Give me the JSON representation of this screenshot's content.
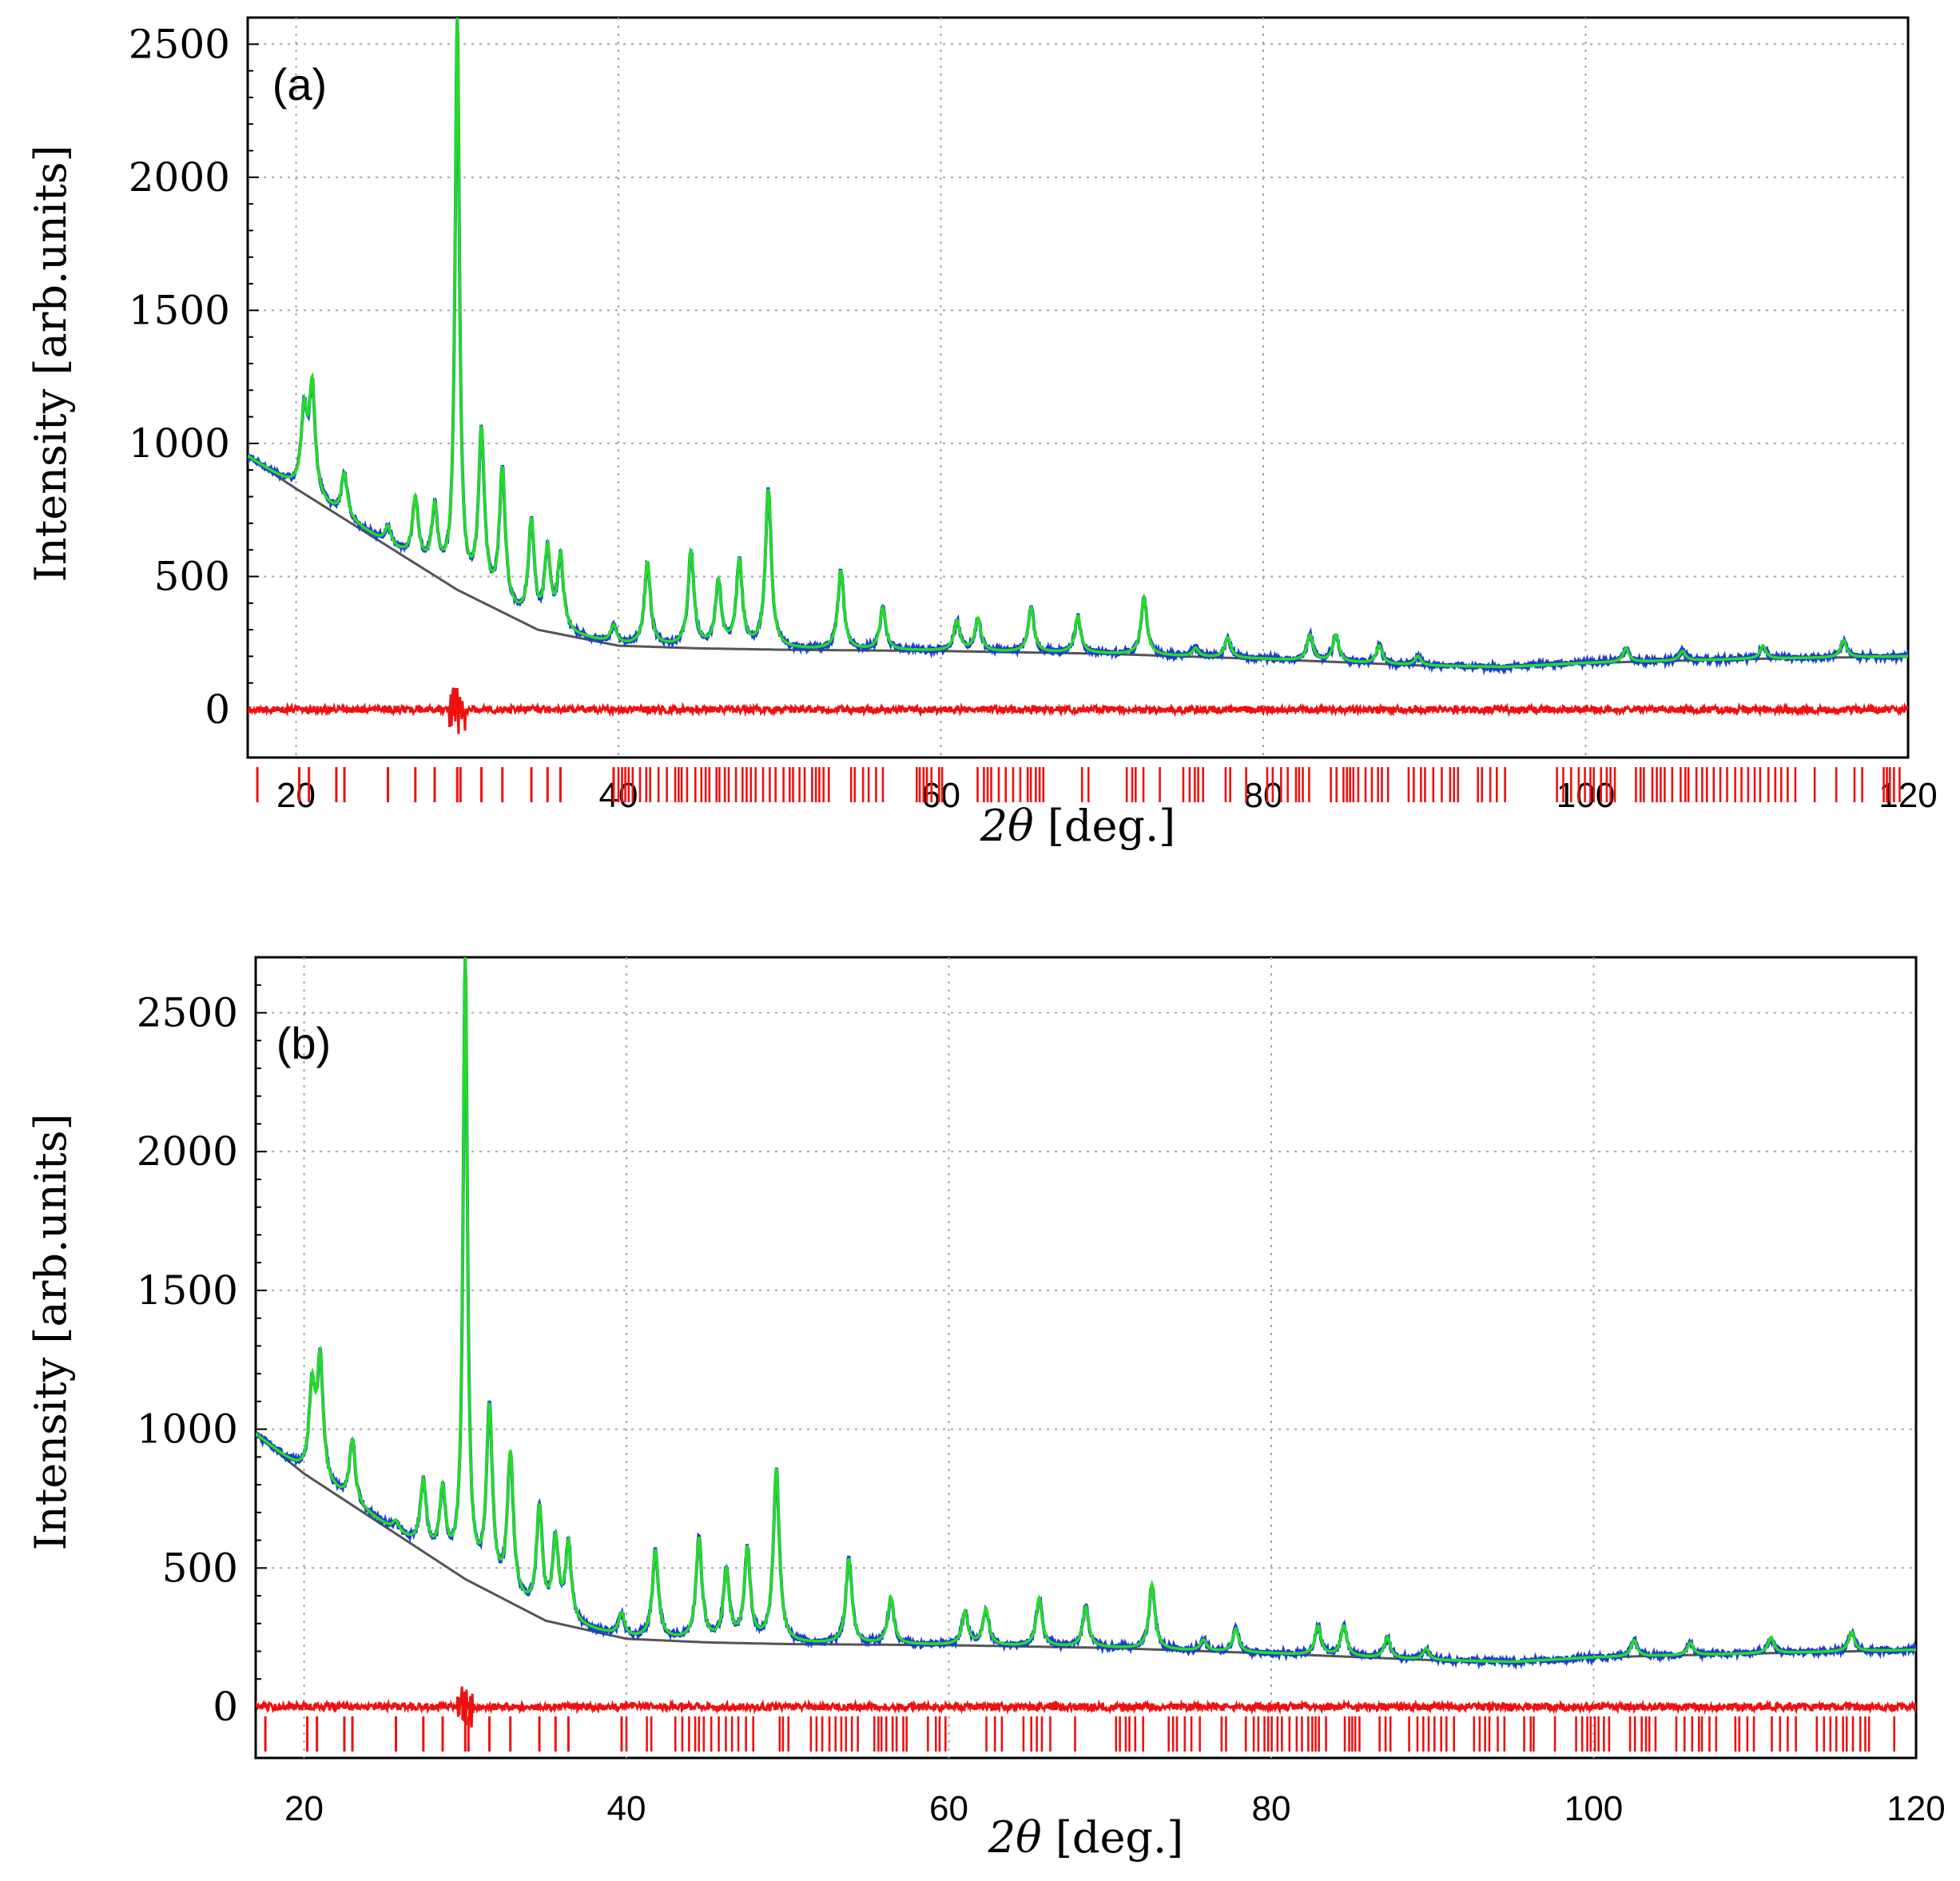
{
  "chart_data": [
    {
      "type": "line",
      "panel_label": "(a)",
      "xlabel_symbol": "2θ",
      "xlabel_unit": " [deg.]",
      "ylabel": "Intensity [arb.units]",
      "xlim": [
        17,
        120
      ],
      "ylim": [
        -180,
        2600
      ],
      "x_ticks": [
        20,
        40,
        60,
        80,
        100,
        120
      ],
      "y_ticks": [
        0,
        500,
        1000,
        1500,
        2000,
        2500
      ],
      "grid": true,
      "series": [
        {
          "role": "observed",
          "color": "#1f3bd6"
        },
        {
          "role": "calculated",
          "color": "#22dd22"
        },
        {
          "role": "background",
          "color": "#555555"
        },
        {
          "role": "difference",
          "color": "#ee1111"
        },
        {
          "role": "reflection-markers",
          "color": "#ee1111"
        }
      ],
      "background": {
        "x": [
          17,
          20,
          25,
          30,
          35,
          40,
          45,
          50,
          60,
          70,
          80,
          90,
          95,
          100,
          110,
          120
        ],
        "y": [
          950,
          830,
          640,
          450,
          300,
          240,
          230,
          225,
          220,
          210,
          190,
          165,
          160,
          175,
          190,
          200
        ]
      },
      "peaks": [
        {
          "x": 20.5,
          "y": 1100
        },
        {
          "x": 21.0,
          "y": 1200
        },
        {
          "x": 23.0,
          "y": 880
        },
        {
          "x": 25.7,
          "y": 680
        },
        {
          "x": 27.4,
          "y": 780
        },
        {
          "x": 28.6,
          "y": 740
        },
        {
          "x": 30.0,
          "y": 2600
        },
        {
          "x": 31.5,
          "y": 1020
        },
        {
          "x": 32.8,
          "y": 880
        },
        {
          "x": 34.6,
          "y": 690
        },
        {
          "x": 35.6,
          "y": 580
        },
        {
          "x": 36.4,
          "y": 560
        },
        {
          "x": 39.7,
          "y": 310
        },
        {
          "x": 41.8,
          "y": 550
        },
        {
          "x": 44.5,
          "y": 590
        },
        {
          "x": 46.2,
          "y": 470
        },
        {
          "x": 47.5,
          "y": 550
        },
        {
          "x": 49.3,
          "y": 820
        },
        {
          "x": 53.8,
          "y": 520
        },
        {
          "x": 56.4,
          "y": 380
        },
        {
          "x": 61.0,
          "y": 330
        },
        {
          "x": 62.3,
          "y": 340
        },
        {
          "x": 65.6,
          "y": 380
        },
        {
          "x": 68.5,
          "y": 350
        },
        {
          "x": 72.6,
          "y": 420
        },
        {
          "x": 75.8,
          "y": 230
        },
        {
          "x": 77.8,
          "y": 270
        },
        {
          "x": 82.9,
          "y": 280
        },
        {
          "x": 84.5,
          "y": 280
        },
        {
          "x": 87.2,
          "y": 240
        },
        {
          "x": 89.6,
          "y": 200
        },
        {
          "x": 102.5,
          "y": 230
        },
        {
          "x": 106.0,
          "y": 220
        },
        {
          "x": 111.0,
          "y": 240
        },
        {
          "x": 116.0,
          "y": 260
        }
      ]
    },
    {
      "type": "line",
      "panel_label": "(b)",
      "xlabel_symbol": "2θ",
      "xlabel_unit": " [deg.]",
      "ylabel": "Intensity [arb.units]",
      "xlim": [
        17,
        120
      ],
      "ylim": [
        -180,
        2700
      ],
      "x_ticks": [
        20,
        40,
        60,
        80,
        100,
        120
      ],
      "y_ticks": [
        0,
        500,
        1000,
        1500,
        2000,
        2500
      ],
      "grid": true,
      "series": [
        {
          "role": "observed",
          "color": "#1f3bd6"
        },
        {
          "role": "calculated",
          "color": "#22dd22"
        },
        {
          "role": "background",
          "color": "#555555"
        },
        {
          "role": "difference",
          "color": "#ee1111"
        },
        {
          "role": "reflection-markers",
          "color": "#ee1111"
        }
      ],
      "background": {
        "x": [
          17,
          20,
          25,
          30,
          35,
          40,
          45,
          50,
          60,
          70,
          80,
          90,
          95,
          100,
          110,
          120
        ],
        "y": [
          980,
          840,
          650,
          460,
          310,
          245,
          232,
          226,
          222,
          212,
          192,
          168,
          162,
          178,
          192,
          205
        ]
      },
      "peaks": [
        {
          "x": 20.5,
          "y": 1130
        },
        {
          "x": 21.0,
          "y": 1230
        },
        {
          "x": 23.0,
          "y": 950
        },
        {
          "x": 25.7,
          "y": 660
        },
        {
          "x": 27.4,
          "y": 800
        },
        {
          "x": 28.6,
          "y": 760
        },
        {
          "x": 30.0,
          "y": 2700
        },
        {
          "x": 31.5,
          "y": 1050
        },
        {
          "x": 32.8,
          "y": 890
        },
        {
          "x": 34.6,
          "y": 700
        },
        {
          "x": 35.6,
          "y": 580
        },
        {
          "x": 36.4,
          "y": 570
        },
        {
          "x": 39.7,
          "y": 330
        },
        {
          "x": 41.8,
          "y": 560
        },
        {
          "x": 44.5,
          "y": 600
        },
        {
          "x": 46.2,
          "y": 480
        },
        {
          "x": 47.5,
          "y": 560
        },
        {
          "x": 49.3,
          "y": 850
        },
        {
          "x": 53.8,
          "y": 530
        },
        {
          "x": 56.4,
          "y": 390
        },
        {
          "x": 61.0,
          "y": 340
        },
        {
          "x": 62.3,
          "y": 350
        },
        {
          "x": 65.6,
          "y": 390
        },
        {
          "x": 68.5,
          "y": 360
        },
        {
          "x": 72.6,
          "y": 440
        },
        {
          "x": 75.8,
          "y": 240
        },
        {
          "x": 77.8,
          "y": 280
        },
        {
          "x": 82.9,
          "y": 290
        },
        {
          "x": 84.5,
          "y": 290
        },
        {
          "x": 87.2,
          "y": 250
        },
        {
          "x": 89.6,
          "y": 210
        },
        {
          "x": 102.5,
          "y": 240
        },
        {
          "x": 106.0,
          "y": 230
        },
        {
          "x": 111.0,
          "y": 250
        },
        {
          "x": 116.0,
          "y": 270
        }
      ]
    }
  ]
}
